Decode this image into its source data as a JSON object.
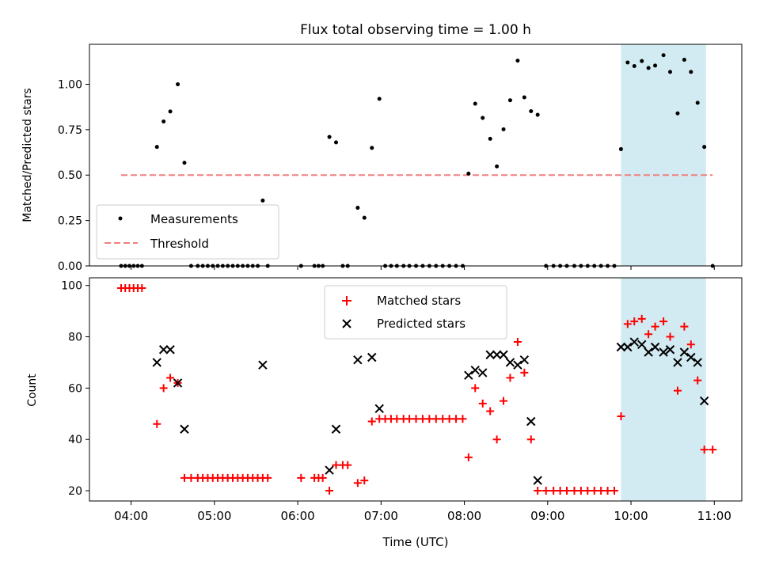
{
  "title": "Flux total observing time = 1.00 h",
  "x_axis": {
    "label": "Time (UTC)",
    "tick_labels": [
      "04:00",
      "05:00",
      "06:00",
      "07:00",
      "08:00",
      "09:00",
      "10:00",
      "11:00"
    ],
    "tick_hours": [
      4,
      5,
      6,
      7,
      8,
      9,
      10,
      11
    ],
    "range_hours": [
      3.5,
      11.33
    ]
  },
  "colors": {
    "measurements": "#000000",
    "threshold": "#f08080",
    "matched": "#ff0000",
    "predicted": "#000000",
    "highlight": "#add8e6"
  },
  "chart_data": [
    {
      "type": "scatter",
      "panel": "top",
      "ylabel": "Matched/Predicted stars",
      "ylim": [
        0,
        1.22
      ],
      "yticks": [
        "0.00",
        "0.25",
        "0.50",
        "0.75",
        "1.00"
      ],
      "ytick_values": [
        0,
        0.25,
        0.5,
        0.75,
        1.0
      ],
      "legend": {
        "placement": "lower-left",
        "entries": [
          "Measurements",
          "Threshold"
        ]
      },
      "highlight_span_hours": [
        9.88,
        10.9
      ],
      "threshold": {
        "name": "Threshold",
        "y": 0.5,
        "x_range_hours": [
          3.88,
          10.98
        ]
      },
      "series": [
        {
          "name": "Measurements",
          "x_hours": [
            3.88,
            3.93,
            3.98,
            4.03,
            4.08,
            4.13,
            4.31,
            4.39,
            4.47,
            4.56,
            4.64,
            4.72,
            4.8,
            4.86,
            4.92,
            4.98,
            5.04,
            5.1,
            5.16,
            5.22,
            5.28,
            5.34,
            5.4,
            5.46,
            5.52,
            5.58,
            5.64,
            6.04,
            6.2,
            6.25,
            6.3,
            6.38,
            6.46,
            6.54,
            6.6,
            6.72,
            6.8,
            6.89,
            6.98,
            7.05,
            7.12,
            7.19,
            7.27,
            7.34,
            7.42,
            7.5,
            7.58,
            7.66,
            7.74,
            7.82,
            7.9,
            7.98,
            8.05,
            8.13,
            8.22,
            8.31,
            8.39,
            8.47,
            8.55,
            8.64,
            8.72,
            8.8,
            8.88,
            8.98,
            9.07,
            9.15,
            9.23,
            9.32,
            9.4,
            9.48,
            9.56,
            9.64,
            9.72,
            9.8,
            9.88,
            9.96,
            10.04,
            10.13,
            10.21,
            10.29,
            10.39,
            10.47,
            10.56,
            10.64,
            10.72,
            10.8,
            10.88,
            10.98
          ],
          "y": [
            0,
            0,
            0,
            0,
            0,
            0,
            0.655,
            0.795,
            0.85,
            1.0,
            0.568,
            0,
            0,
            0,
            0,
            0,
            0,
            0,
            0,
            0,
            0,
            0,
            0,
            0,
            0,
            0.36,
            0,
            0,
            0,
            0,
            0,
            0.71,
            0.68,
            0,
            0,
            0.32,
            0.265,
            0.65,
            0.92,
            0,
            0,
            0,
            0,
            0,
            0,
            0,
            0,
            0,
            0,
            0,
            0,
            0,
            0.508,
            0.893,
            0.815,
            0.7,
            0.548,
            0.752,
            0.912,
            1.13,
            0.928,
            0.852,
            0.832,
            0,
            0,
            0,
            0,
            0,
            0,
            0,
            0,
            0,
            0,
            0,
            0.643,
            1.12,
            1.1,
            1.128,
            1.09,
            1.103,
            1.16,
            1.068,
            0.84,
            1.135,
            1.068,
            0.898,
            0.655,
            0
          ]
        }
      ]
    },
    {
      "type": "scatter",
      "panel": "bottom",
      "ylabel": "Count",
      "ylim": [
        16,
        103
      ],
      "yticks": [
        "20",
        "40",
        "60",
        "80",
        "100"
      ],
      "ytick_values": [
        20,
        40,
        60,
        80,
        100
      ],
      "legend": {
        "placement": "upper-center",
        "entries": [
          "Matched stars",
          "Predicted stars"
        ]
      },
      "highlight_span_hours": [
        9.88,
        10.9
      ],
      "series": [
        {
          "name": "Matched stars",
          "x_hours": [
            3.88,
            3.93,
            3.98,
            4.03,
            4.08,
            4.13,
            4.31,
            4.39,
            4.47,
            4.56,
            4.64,
            4.72,
            4.8,
            4.86,
            4.92,
            4.98,
            5.04,
            5.1,
            5.16,
            5.22,
            5.28,
            5.34,
            5.4,
            5.46,
            5.52,
            5.58,
            5.64,
            6.04,
            6.2,
            6.25,
            6.3,
            6.38,
            6.46,
            6.54,
            6.6,
            6.72,
            6.8,
            6.89,
            6.98,
            7.05,
            7.12,
            7.19,
            7.27,
            7.34,
            7.42,
            7.5,
            7.58,
            7.66,
            7.74,
            7.82,
            7.9,
            7.98,
            8.05,
            8.13,
            8.22,
            8.31,
            8.39,
            8.47,
            8.55,
            8.64,
            8.72,
            8.8,
            8.88,
            8.98,
            9.07,
            9.15,
            9.23,
            9.32,
            9.4,
            9.48,
            9.56,
            9.64,
            9.72,
            9.8,
            9.88,
            9.96,
            10.04,
            10.13,
            10.21,
            10.29,
            10.39,
            10.47,
            10.56,
            10.64,
            10.72,
            10.8,
            10.88,
            10.98
          ],
          "y": [
            99,
            99,
            99,
            99,
            99,
            99,
            46,
            60,
            64,
            62,
            25,
            25,
            25,
            25,
            25,
            25,
            25,
            25,
            25,
            25,
            25,
            25,
            25,
            25,
            25,
            25,
            25,
            25,
            25,
            25,
            25,
            20,
            30,
            30,
            30,
            23,
            24,
            47,
            48,
            48,
            48,
            48,
            48,
            48,
            48,
            48,
            48,
            48,
            48,
            48,
            48,
            48,
            33,
            60,
            54,
            51,
            40,
            55,
            64,
            78,
            66,
            40,
            20,
            20,
            20,
            20,
            20,
            20,
            20,
            20,
            20,
            20,
            20,
            20,
            49,
            85,
            86,
            87,
            81,
            84,
            86,
            80,
            59,
            84,
            77,
            63,
            36,
            36
          ]
        },
        {
          "name": "Predicted stars",
          "x_hours": [
            4.31,
            4.39,
            4.47,
            4.56,
            4.64,
            5.58,
            6.38,
            6.46,
            6.72,
            6.89,
            6.98,
            8.05,
            8.13,
            8.22,
            8.31,
            8.39,
            8.47,
            8.55,
            8.64,
            8.72,
            8.8,
            8.88,
            9.88,
            9.96,
            10.04,
            10.13,
            10.21,
            10.29,
            10.39,
            10.47,
            10.56,
            10.64,
            10.72,
            10.8,
            10.88
          ],
          "y": [
            70,
            75,
            75,
            62,
            44,
            69,
            28,
            44,
            71,
            72,
            52,
            65,
            67,
            66,
            73,
            73,
            73,
            70,
            69,
            71,
            47,
            24,
            76,
            76,
            78,
            77,
            74,
            76,
            74,
            75,
            70,
            74,
            72,
            70,
            55
          ]
        }
      ]
    }
  ]
}
